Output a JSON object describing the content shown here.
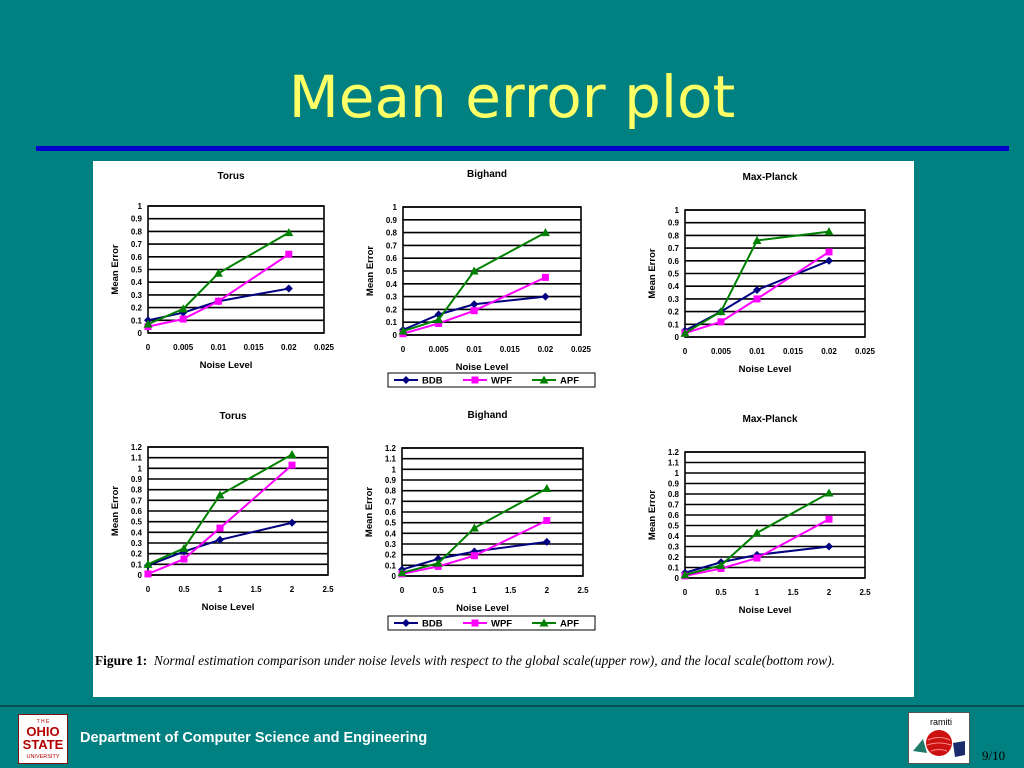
{
  "slide": {
    "title": "Mean error plot",
    "footer_department": "Department of Computer Science and Engineering",
    "page_number": "9/10",
    "logo_text": {
      "line1": "T H E",
      "line2": "OHIO",
      "line3": "STATE",
      "line4": "UNIVERSITY"
    },
    "badge_text": "ramiti"
  },
  "figure": {
    "caption_label": "Figure 1:",
    "caption_text": "Normal estimation comparison under noise levels with respect to the global scale(upper row), and the local scale(bottom row)."
  },
  "colors": {
    "BDB": "#000080",
    "WPF": "#ff00ff",
    "APF": "#008000",
    "background": "#008080",
    "title": "#ffff66",
    "rule": "#0000cc"
  },
  "legends": [
    {
      "items": [
        "BDB",
        "WPF",
        "APF"
      ]
    },
    {
      "items": [
        "BDB",
        "WPF",
        "APF"
      ]
    }
  ],
  "chart_data": [
    {
      "type": "line",
      "title": "Torus",
      "xlabel": "Noise Level",
      "ylabel": "Mean Error",
      "x": [
        0,
        0.005,
        0.01,
        0.02
      ],
      "xlim": [
        0,
        0.025
      ],
      "xticks": [
        "0",
        "0.005",
        "0.01",
        "0.015",
        "0.02",
        "0.025"
      ],
      "ylim": [
        0,
        1
      ],
      "yticks": [
        "0",
        "0.1",
        "0.2",
        "0.3",
        "0.4",
        "0.5",
        "0.6",
        "0.7",
        "0.8",
        "0.9",
        "1"
      ],
      "series": [
        {
          "name": "BDB",
          "values": [
            0.1,
            0.16,
            0.25,
            0.35
          ]
        },
        {
          "name": "WPF",
          "values": [
            0.05,
            0.11,
            0.25,
            0.62
          ]
        },
        {
          "name": "APF",
          "values": [
            0.07,
            0.19,
            0.47,
            0.79
          ]
        }
      ]
    },
    {
      "type": "line",
      "title": "Bighand",
      "xlabel": "Noise Level",
      "ylabel": "Mean Error",
      "x": [
        0,
        0.005,
        0.01,
        0.02
      ],
      "xlim": [
        0,
        0.025
      ],
      "xticks": [
        "0",
        "0.005",
        "0.01",
        "0.015",
        "0.02",
        "0.025"
      ],
      "ylim": [
        0,
        1
      ],
      "yticks": [
        "0",
        "0.1",
        "0.2",
        "0.3",
        "0.4",
        "0.5",
        "0.6",
        "0.7",
        "0.8",
        "0.9",
        "1"
      ],
      "series": [
        {
          "name": "BDB",
          "values": [
            0.04,
            0.16,
            0.24,
            0.3
          ]
        },
        {
          "name": "WPF",
          "values": [
            0.01,
            0.09,
            0.19,
            0.45
          ]
        },
        {
          "name": "APF",
          "values": [
            0.03,
            0.12,
            0.5,
            0.8
          ]
        }
      ]
    },
    {
      "type": "line",
      "title": "Max-Planck",
      "xlabel": "Noise Level",
      "ylabel": "Mean Error",
      "x": [
        0,
        0.005,
        0.01,
        0.02
      ],
      "xlim": [
        0,
        0.025
      ],
      "xticks": [
        "0",
        "0.005",
        "0.01",
        "0.015",
        "0.02",
        "0.025"
      ],
      "ylim": [
        0,
        1
      ],
      "yticks": [
        "0",
        "0.1",
        "0.2",
        "0.3",
        "0.4",
        "0.5",
        "0.6",
        "0.7",
        "0.8",
        "0.9",
        "1"
      ],
      "series": [
        {
          "name": "BDB",
          "values": [
            0.05,
            0.2,
            0.37,
            0.6
          ]
        },
        {
          "name": "WPF",
          "values": [
            0.03,
            0.12,
            0.3,
            0.67
          ]
        },
        {
          "name": "APF",
          "values": [
            0.03,
            0.2,
            0.76,
            0.83
          ]
        }
      ]
    },
    {
      "type": "line",
      "title": "Torus",
      "xlabel": "Noise Level",
      "ylabel": "Mean Error",
      "x": [
        0,
        0.5,
        1,
        2
      ],
      "xlim": [
        0,
        2.5
      ],
      "xticks": [
        "0",
        "0.5",
        "1",
        "1.5",
        "2",
        "2.5"
      ],
      "ylim": [
        0,
        1.2
      ],
      "yticks": [
        "0",
        "0.1",
        "0.2",
        "0.3",
        "0.4",
        "0.5",
        "0.6",
        "0.7",
        "0.8",
        "0.9",
        "1",
        "1.1",
        "1.2"
      ],
      "series": [
        {
          "name": "BDB",
          "values": [
            0.09,
            0.22,
            0.33,
            0.49
          ]
        },
        {
          "name": "WPF",
          "values": [
            0.01,
            0.15,
            0.44,
            1.03
          ]
        },
        {
          "name": "APF",
          "values": [
            0.1,
            0.25,
            0.75,
            1.13
          ]
        }
      ]
    },
    {
      "type": "line",
      "title": "Bighand",
      "xlabel": "Noise Level",
      "ylabel": "Mean Error",
      "x": [
        0,
        0.5,
        1,
        2
      ],
      "xlim": [
        0,
        2.5
      ],
      "xticks": [
        "0",
        "0.5",
        "1",
        "1.5",
        "2",
        "2.5"
      ],
      "ylim": [
        0,
        1.2
      ],
      "yticks": [
        "0",
        "0.1",
        "0.2",
        "0.3",
        "0.4",
        "0.5",
        "0.6",
        "0.7",
        "0.8",
        "0.9",
        "1",
        "1.1",
        "1.2"
      ],
      "series": [
        {
          "name": "BDB",
          "values": [
            0.06,
            0.16,
            0.23,
            0.32
          ]
        },
        {
          "name": "WPF",
          "values": [
            0.02,
            0.09,
            0.19,
            0.52
          ]
        },
        {
          "name": "APF",
          "values": [
            0.03,
            0.12,
            0.45,
            0.82
          ]
        }
      ]
    },
    {
      "type": "line",
      "title": "Max-Planck",
      "xlabel": "Noise Level",
      "ylabel": "Mean Error",
      "x": [
        0,
        0.5,
        1,
        2
      ],
      "xlim": [
        0,
        2.5
      ],
      "xticks": [
        "0",
        "0.5",
        "1",
        "1.5",
        "2",
        "2.5"
      ],
      "ylim": [
        0,
        1.2
      ],
      "yticks": [
        "0",
        "0.1",
        "0.2",
        "0.3",
        "0.4",
        "0.5",
        "0.6",
        "0.7",
        "0.8",
        "0.9",
        "1",
        "1.1",
        "1.2"
      ],
      "series": [
        {
          "name": "BDB",
          "values": [
            0.05,
            0.15,
            0.22,
            0.3
          ]
        },
        {
          "name": "WPF",
          "values": [
            0.02,
            0.09,
            0.19,
            0.56
          ]
        },
        {
          "name": "APF",
          "values": [
            0.03,
            0.12,
            0.43,
            0.81
          ]
        }
      ]
    }
  ]
}
